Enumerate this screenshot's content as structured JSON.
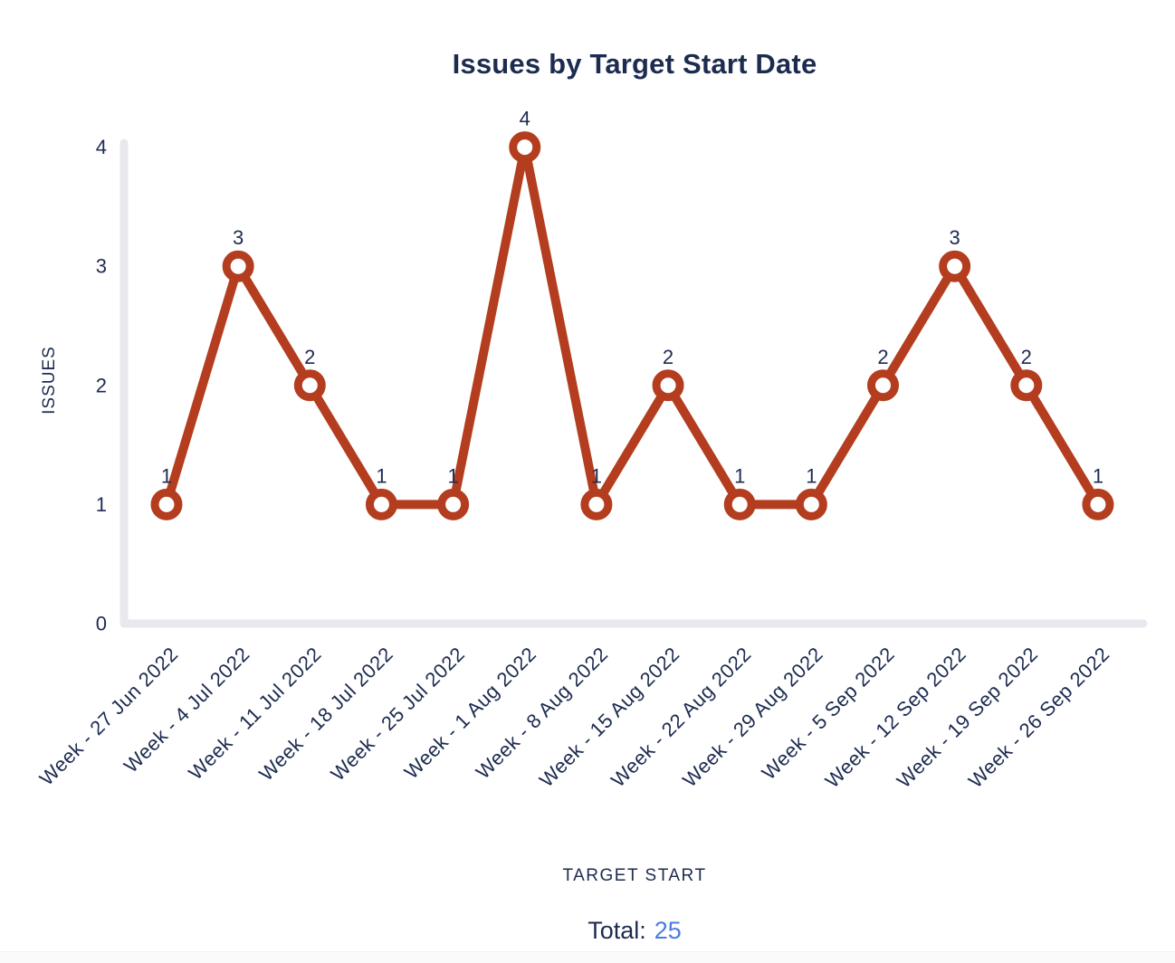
{
  "chart": {
    "title": "Issues by Target Start Date",
    "y_axis": {
      "label": "ISSUES",
      "ticks": [
        "0",
        "1",
        "2",
        "3",
        "4"
      ]
    },
    "x_axis": {
      "label": "TARGET START"
    },
    "total": {
      "label": "Total:",
      "value": "25"
    },
    "colors": {
      "text": "#1d2b50",
      "line": "#b33d1e",
      "marker_fill": "#ffffff",
      "axis": "#e7e9ee",
      "total_value": "#4c7ce0",
      "background": "#ffffff",
      "bottom_strip": "#fafafa"
    }
  },
  "chart_data": {
    "type": "line",
    "title": "Issues by Target Start Date",
    "xlabel": "TARGET START",
    "ylabel": "ISSUES",
    "categories": [
      "Week - 27 Jun 2022",
      "Week - 4 Jul 2022",
      "Week - 11 Jul 2022",
      "Week - 18 Jul 2022",
      "Week - 25 Jul 2022",
      "Week - 1 Aug 2022",
      "Week - 8 Aug 2022",
      "Week - 15 Aug 2022",
      "Week - 22 Aug 2022",
      "Week - 29 Aug 2022",
      "Week - 5 Sep 2022",
      "Week - 12 Sep 2022",
      "Week - 19 Sep 2022",
      "Week - 26 Sep 2022"
    ],
    "values": [
      1,
      3,
      2,
      1,
      1,
      4,
      1,
      2,
      1,
      1,
      2,
      3,
      2,
      1
    ],
    "ylim": [
      0,
      4
    ],
    "yticks": [
      0,
      1,
      2,
      3,
      4
    ],
    "total": 25,
    "grid": false,
    "legend": false,
    "marker": "open-circle",
    "line_color": "#b33d1e",
    "x_tick_rotation": -45,
    "point_labels_shown": true
  }
}
